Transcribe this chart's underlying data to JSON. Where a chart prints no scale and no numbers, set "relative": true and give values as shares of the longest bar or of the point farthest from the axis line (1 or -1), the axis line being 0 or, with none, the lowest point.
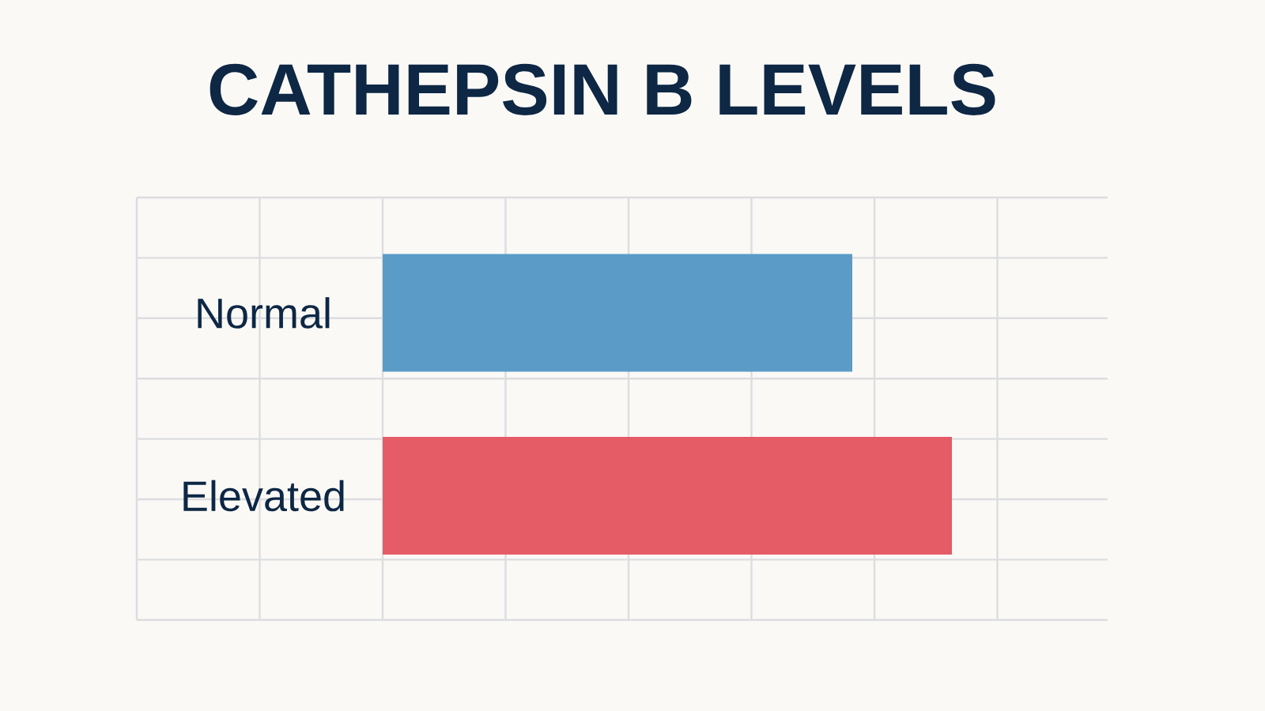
{
  "chart_data": {
    "type": "bar",
    "title": "CATHEPSIN B LEVELS",
    "orientation": "horizontal",
    "relative": true,
    "categories": [
      "Normal",
      "Elevated"
    ],
    "values": [
      0.825,
      1
    ],
    "colors": [
      "#5b9bc8",
      "#e55b66"
    ],
    "grid": true
  }
}
